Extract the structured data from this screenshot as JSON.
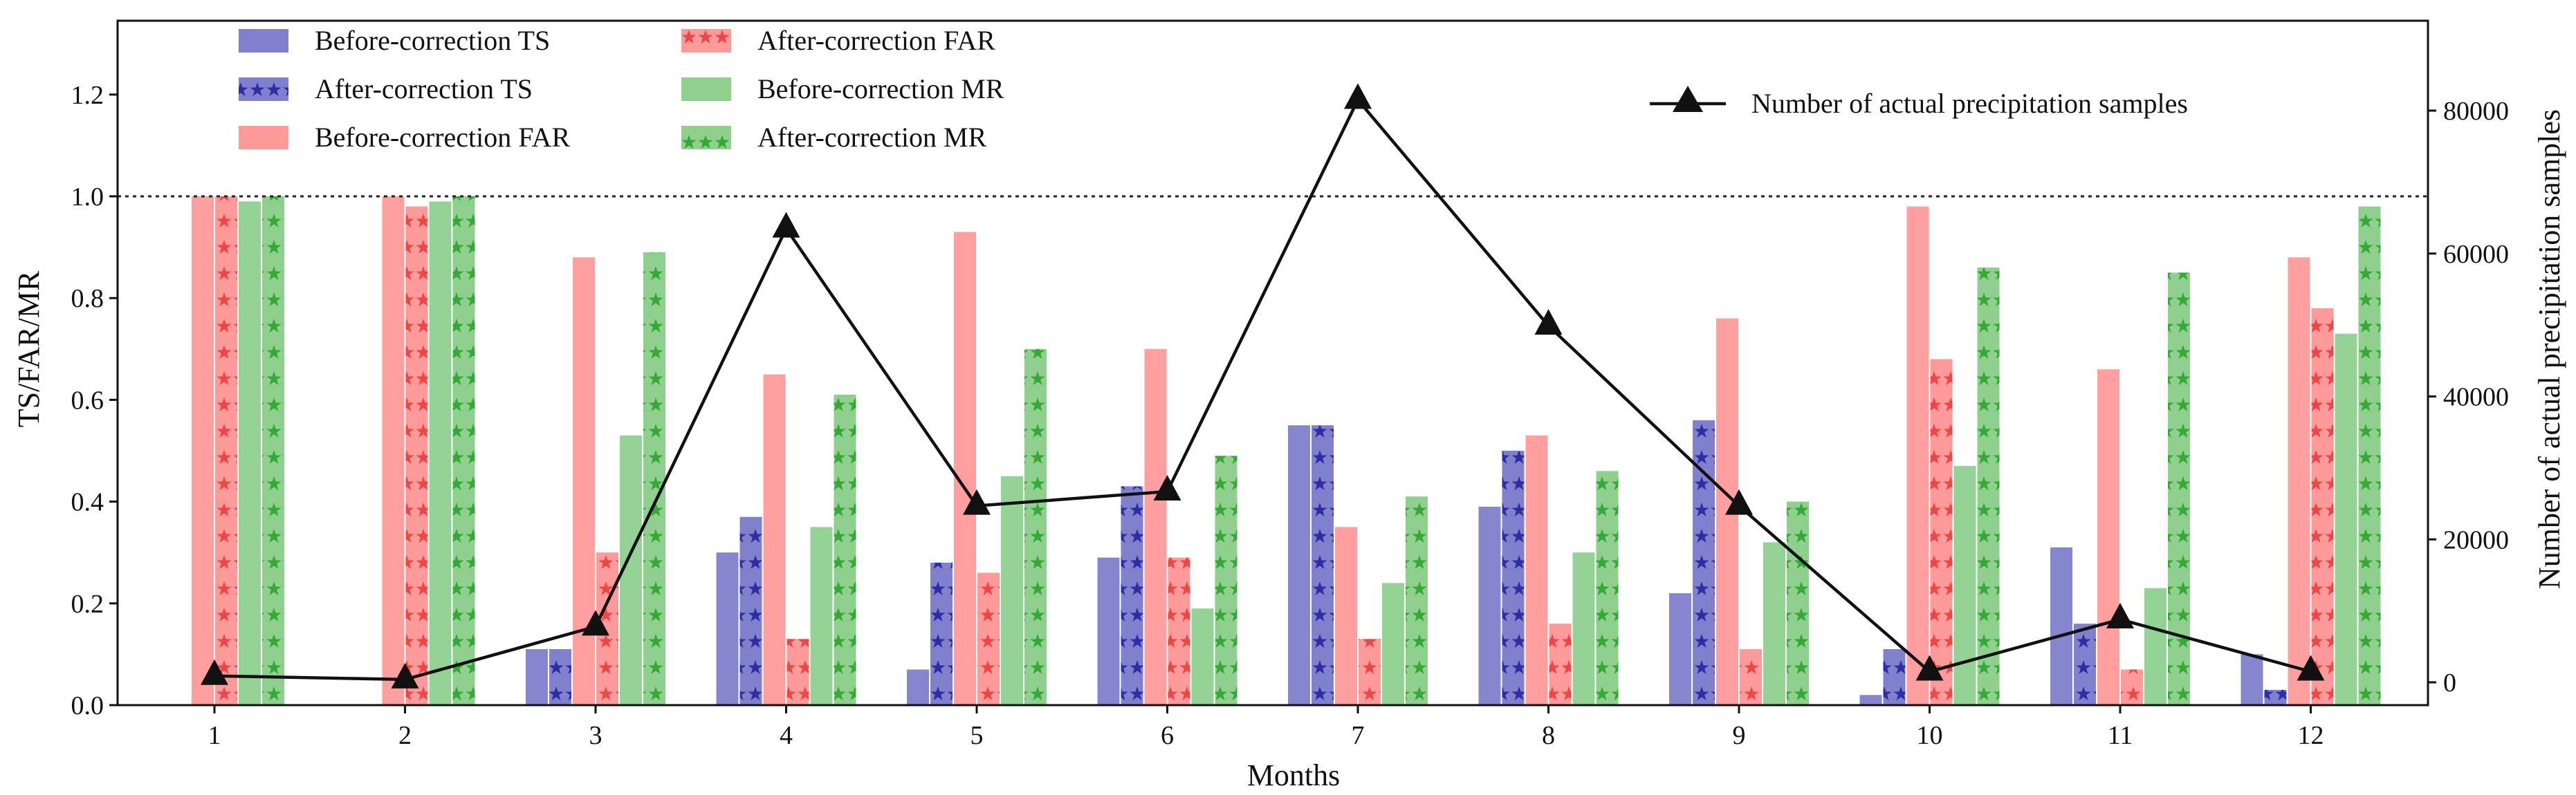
{
  "chart_data": {
    "type": "bar",
    "xlabel": "Months",
    "ylabel": "TS/FAR/MR",
    "y2label": "Number of actual precipitation samples",
    "categories": [
      "1",
      "2",
      "3",
      "4",
      "5",
      "6",
      "7",
      "8",
      "9",
      "10",
      "11",
      "12"
    ],
    "ylim": [
      0,
      1.35
    ],
    "yticks": [
      "0.0",
      "0.2",
      "0.4",
      "0.6",
      "0.8",
      "1.0",
      "1.2"
    ],
    "y2lim": [
      -5000,
      95000
    ],
    "y2ticks": [
      "0",
      "20000",
      "40000",
      "60000",
      "80000"
    ],
    "reference_line": 1.0,
    "series": [
      {
        "name": "Before-correction TS",
        "color": "#8080cc",
        "hatch": false,
        "values": [
          0,
          0,
          0.11,
          0.3,
          0.07,
          0.29,
          0.55,
          0.39,
          0.22,
          0.02,
          0.31,
          0.1
        ]
      },
      {
        "name": "After-correction TS",
        "color": "#8080cc",
        "hatch": true,
        "values": [
          0,
          0,
          0.11,
          0.37,
          0.28,
          0.43,
          0.55,
          0.5,
          0.56,
          0.11,
          0.16,
          0.03
        ]
      },
      {
        "name": "Before-correction FAR",
        "color": "#ff9a9a",
        "hatch": false,
        "values": [
          1.0,
          1.0,
          0.88,
          0.65,
          0.93,
          0.7,
          0.35,
          0.53,
          0.76,
          0.98,
          0.66,
          0.88
        ]
      },
      {
        "name": "After-correction FAR",
        "color": "#ff9a9a",
        "hatch": true,
        "values": [
          1.0,
          0.98,
          0.3,
          0.13,
          0.26,
          0.29,
          0.13,
          0.16,
          0.11,
          0.68,
          0.07,
          0.78
        ]
      },
      {
        "name": "Before-correction MR",
        "color": "#8fd08f",
        "hatch": false,
        "values": [
          0.99,
          0.99,
          0.53,
          0.35,
          0.45,
          0.19,
          0.24,
          0.3,
          0.32,
          0.47,
          0.23,
          0.73
        ]
      },
      {
        "name": "After-correction MR",
        "color": "#8fd08f",
        "hatch": true,
        "values": [
          1.0,
          1.0,
          0.89,
          0.61,
          0.7,
          0.49,
          0.41,
          0.46,
          0.4,
          0.86,
          0.85,
          0.98
        ]
      }
    ],
    "line": {
      "name": "Number of actual precipitation samples",
      "axis": "right",
      "values": [
        900,
        400,
        7800,
        63500,
        24700,
        26700,
        81500,
        49900,
        24700,
        1500,
        8800,
        1500
      ]
    }
  }
}
